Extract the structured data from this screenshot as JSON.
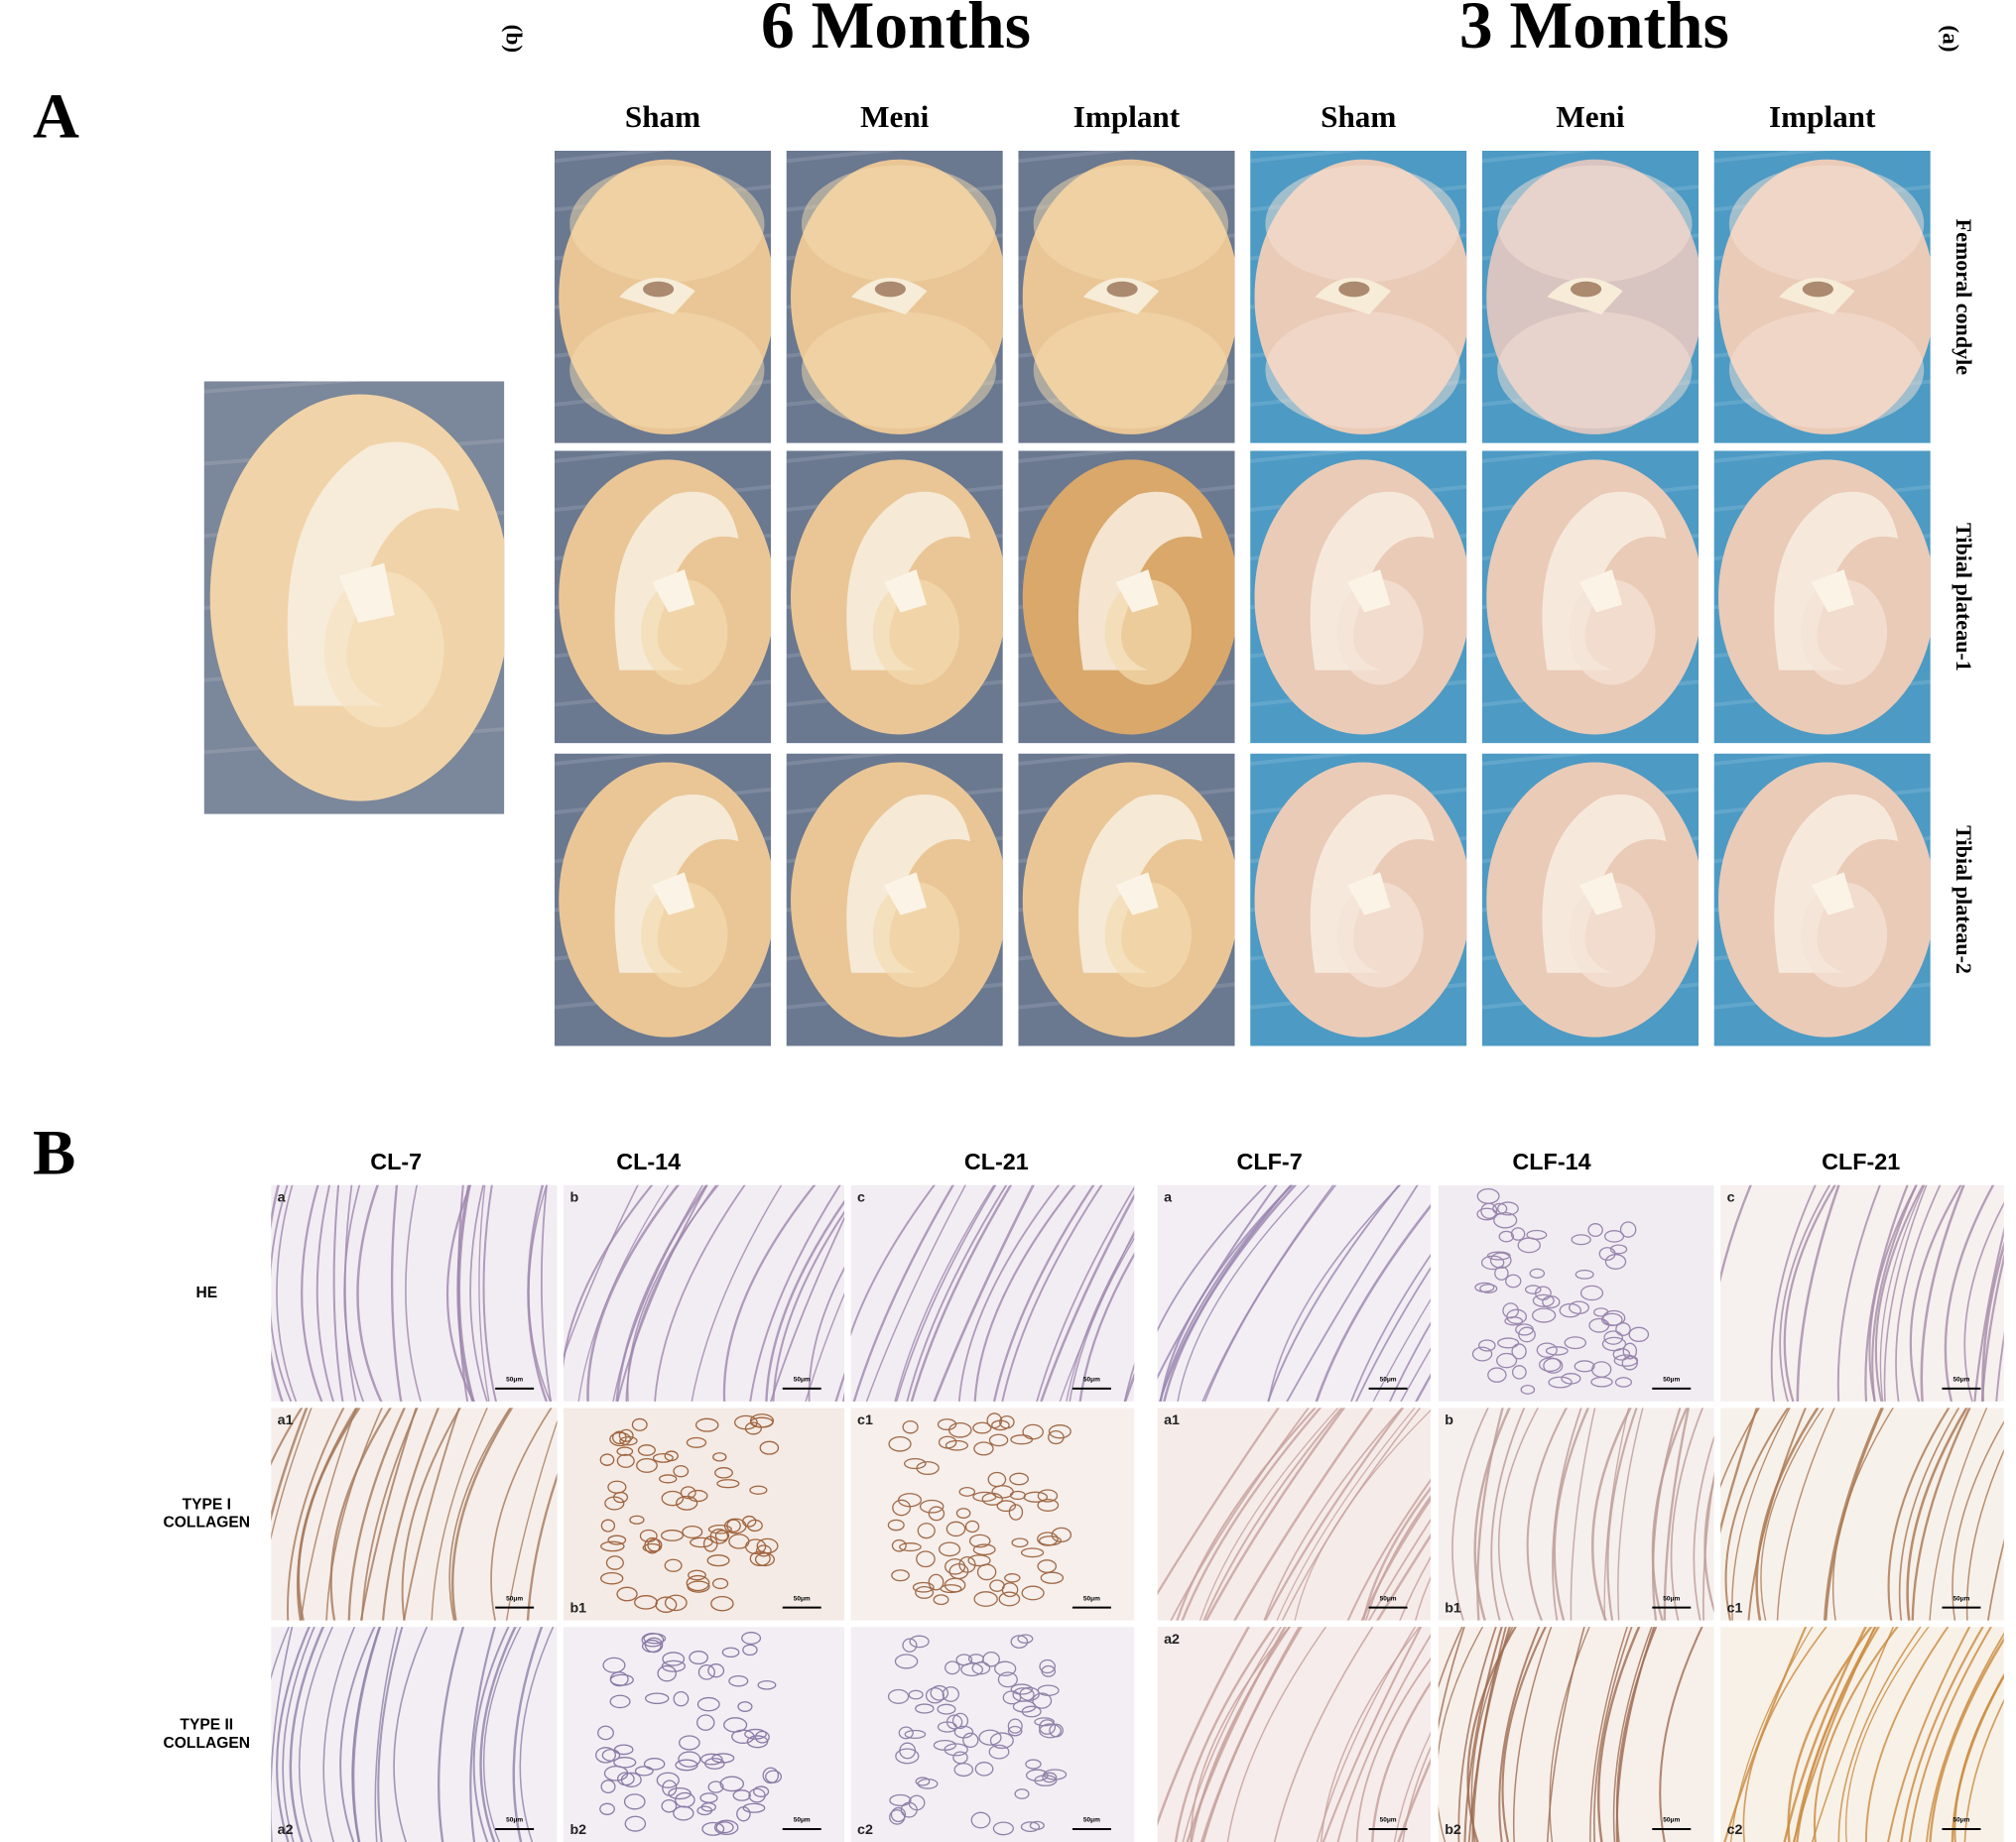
{
  "panel_a": {
    "label": "A",
    "groups": [
      {
        "tag": "(b)",
        "title": "6 Months"
      },
      {
        "tag": "(a)",
        "title": "3 Months"
      }
    ],
    "columns": [
      "Sham",
      "Meni",
      "Implant",
      "Sham",
      "Meni",
      "Implant"
    ],
    "rows": [
      "Femoral condyle",
      "Tibial plateau-1",
      "Tibial plateau-2"
    ]
  },
  "panel_b": {
    "label": "B",
    "columns": [
      "CL-7",
      "CL-14",
      "CL-21",
      "CLF-7",
      "CLF-14",
      "CLF-21"
    ],
    "rows": [
      [
        "HE"
      ],
      [
        "TYPE I",
        "COLLAGEN"
      ],
      [
        "TYPE II",
        "COLLAGEN"
      ]
    ],
    "scale_bar": "50μm",
    "cell_labels": [
      [
        [
          "a"
        ],
        [
          "b"
        ],
        [
          "c"
        ],
        [
          "a"
        ],
        [],
        [
          "c"
        ]
      ],
      [
        [
          "a1"
        ],
        [
          "b1"
        ],
        [
          "c1"
        ],
        [
          "a1"
        ],
        [
          "b",
          "b1"
        ],
        [
          "c1"
        ]
      ],
      [
        [
          "a2"
        ],
        [
          "b2"
        ],
        [
          "c2"
        ],
        [
          "a2"
        ],
        [
          "b2"
        ],
        [
          "c2"
        ]
      ]
    ]
  }
}
